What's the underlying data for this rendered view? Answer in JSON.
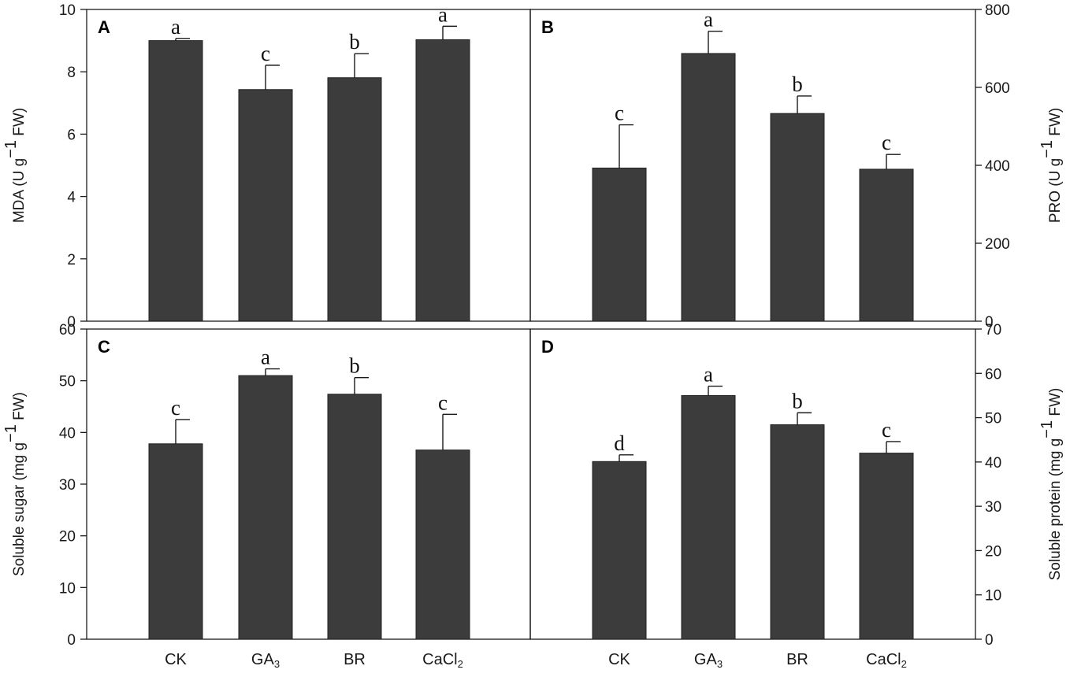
{
  "colors": {
    "bar": "#3c3c3c",
    "axis": "#1a1a1a",
    "background": "#ffffff"
  },
  "chart_data": [
    {
      "panel": "A",
      "type": "bar",
      "categories": [
        "CK",
        "GA3",
        "BR",
        "CaCl2"
      ],
      "values": [
        9.0,
        7.43,
        7.81,
        9.03
      ],
      "errors": [
        0.07,
        0.78,
        0.77,
        0.43
      ],
      "significance": [
        "a",
        "c",
        "b",
        "a"
      ],
      "ylabel": "MDA (U g",
      "ylabel_sup": "−1",
      "ylabel_tail": " FW)",
      "ylim": [
        0,
        10
      ],
      "yticks": [
        "0",
        "2",
        "4",
        "6",
        "8",
        "10"
      ],
      "y_axis_side": "left"
    },
    {
      "panel": "B",
      "type": "bar",
      "categories": [
        "CK",
        "GA3",
        "BR",
        "CaCl2"
      ],
      "values": [
        393,
        687,
        533,
        390
      ],
      "errors": [
        111,
        57,
        45,
        38
      ],
      "significance": [
        "c",
        "a",
        "b",
        "c"
      ],
      "ylabel": "PRO (U g",
      "ylabel_sup": "−1",
      "ylabel_tail": " FW)",
      "ylim": [
        0,
        800
      ],
      "yticks": [
        "0",
        "200",
        "400",
        "600",
        "800"
      ],
      "y_axis_side": "right"
    },
    {
      "panel": "C",
      "type": "bar",
      "categories": [
        "CK",
        "GA3",
        "BR",
        "CaCl2"
      ],
      "values": [
        37.8,
        51.0,
        47.4,
        36.6
      ],
      "errors": [
        4.7,
        1.3,
        3.2,
        6.9
      ],
      "significance": [
        "c",
        "a",
        "b",
        "c"
      ],
      "ylabel": "Soluble sugar (mg g",
      "ylabel_sup": "−1",
      "ylabel_tail": " FW)",
      "ylim": [
        0,
        60
      ],
      "yticks": [
        "0",
        "10",
        "20",
        "30",
        "40",
        "50",
        "60"
      ],
      "y_axis_side": "left"
    },
    {
      "panel": "D",
      "type": "bar",
      "categories": [
        "CK",
        "GA3",
        "BR",
        "CaCl2"
      ],
      "values": [
        40.1,
        55.0,
        48.4,
        42.0
      ],
      "errors": [
        1.5,
        2.1,
        2.7,
        2.6
      ],
      "significance": [
        "d",
        "a",
        "b",
        "c"
      ],
      "ylabel": "Soluble protein (mg g",
      "ylabel_sup": "−1",
      "ylabel_tail": " FW)",
      "ylim": [
        0,
        70
      ],
      "yticks": [
        "0",
        "10",
        "20",
        "30",
        "40",
        "50",
        "60",
        "70"
      ],
      "y_axis_side": "right"
    }
  ],
  "x_axis": {
    "labels": [
      {
        "main": "CK",
        "sub": ""
      },
      {
        "main": "GA",
        "sub": "3"
      },
      {
        "main": "BR",
        "sub": ""
      },
      {
        "main": "CaCl",
        "sub": "2"
      }
    ]
  }
}
